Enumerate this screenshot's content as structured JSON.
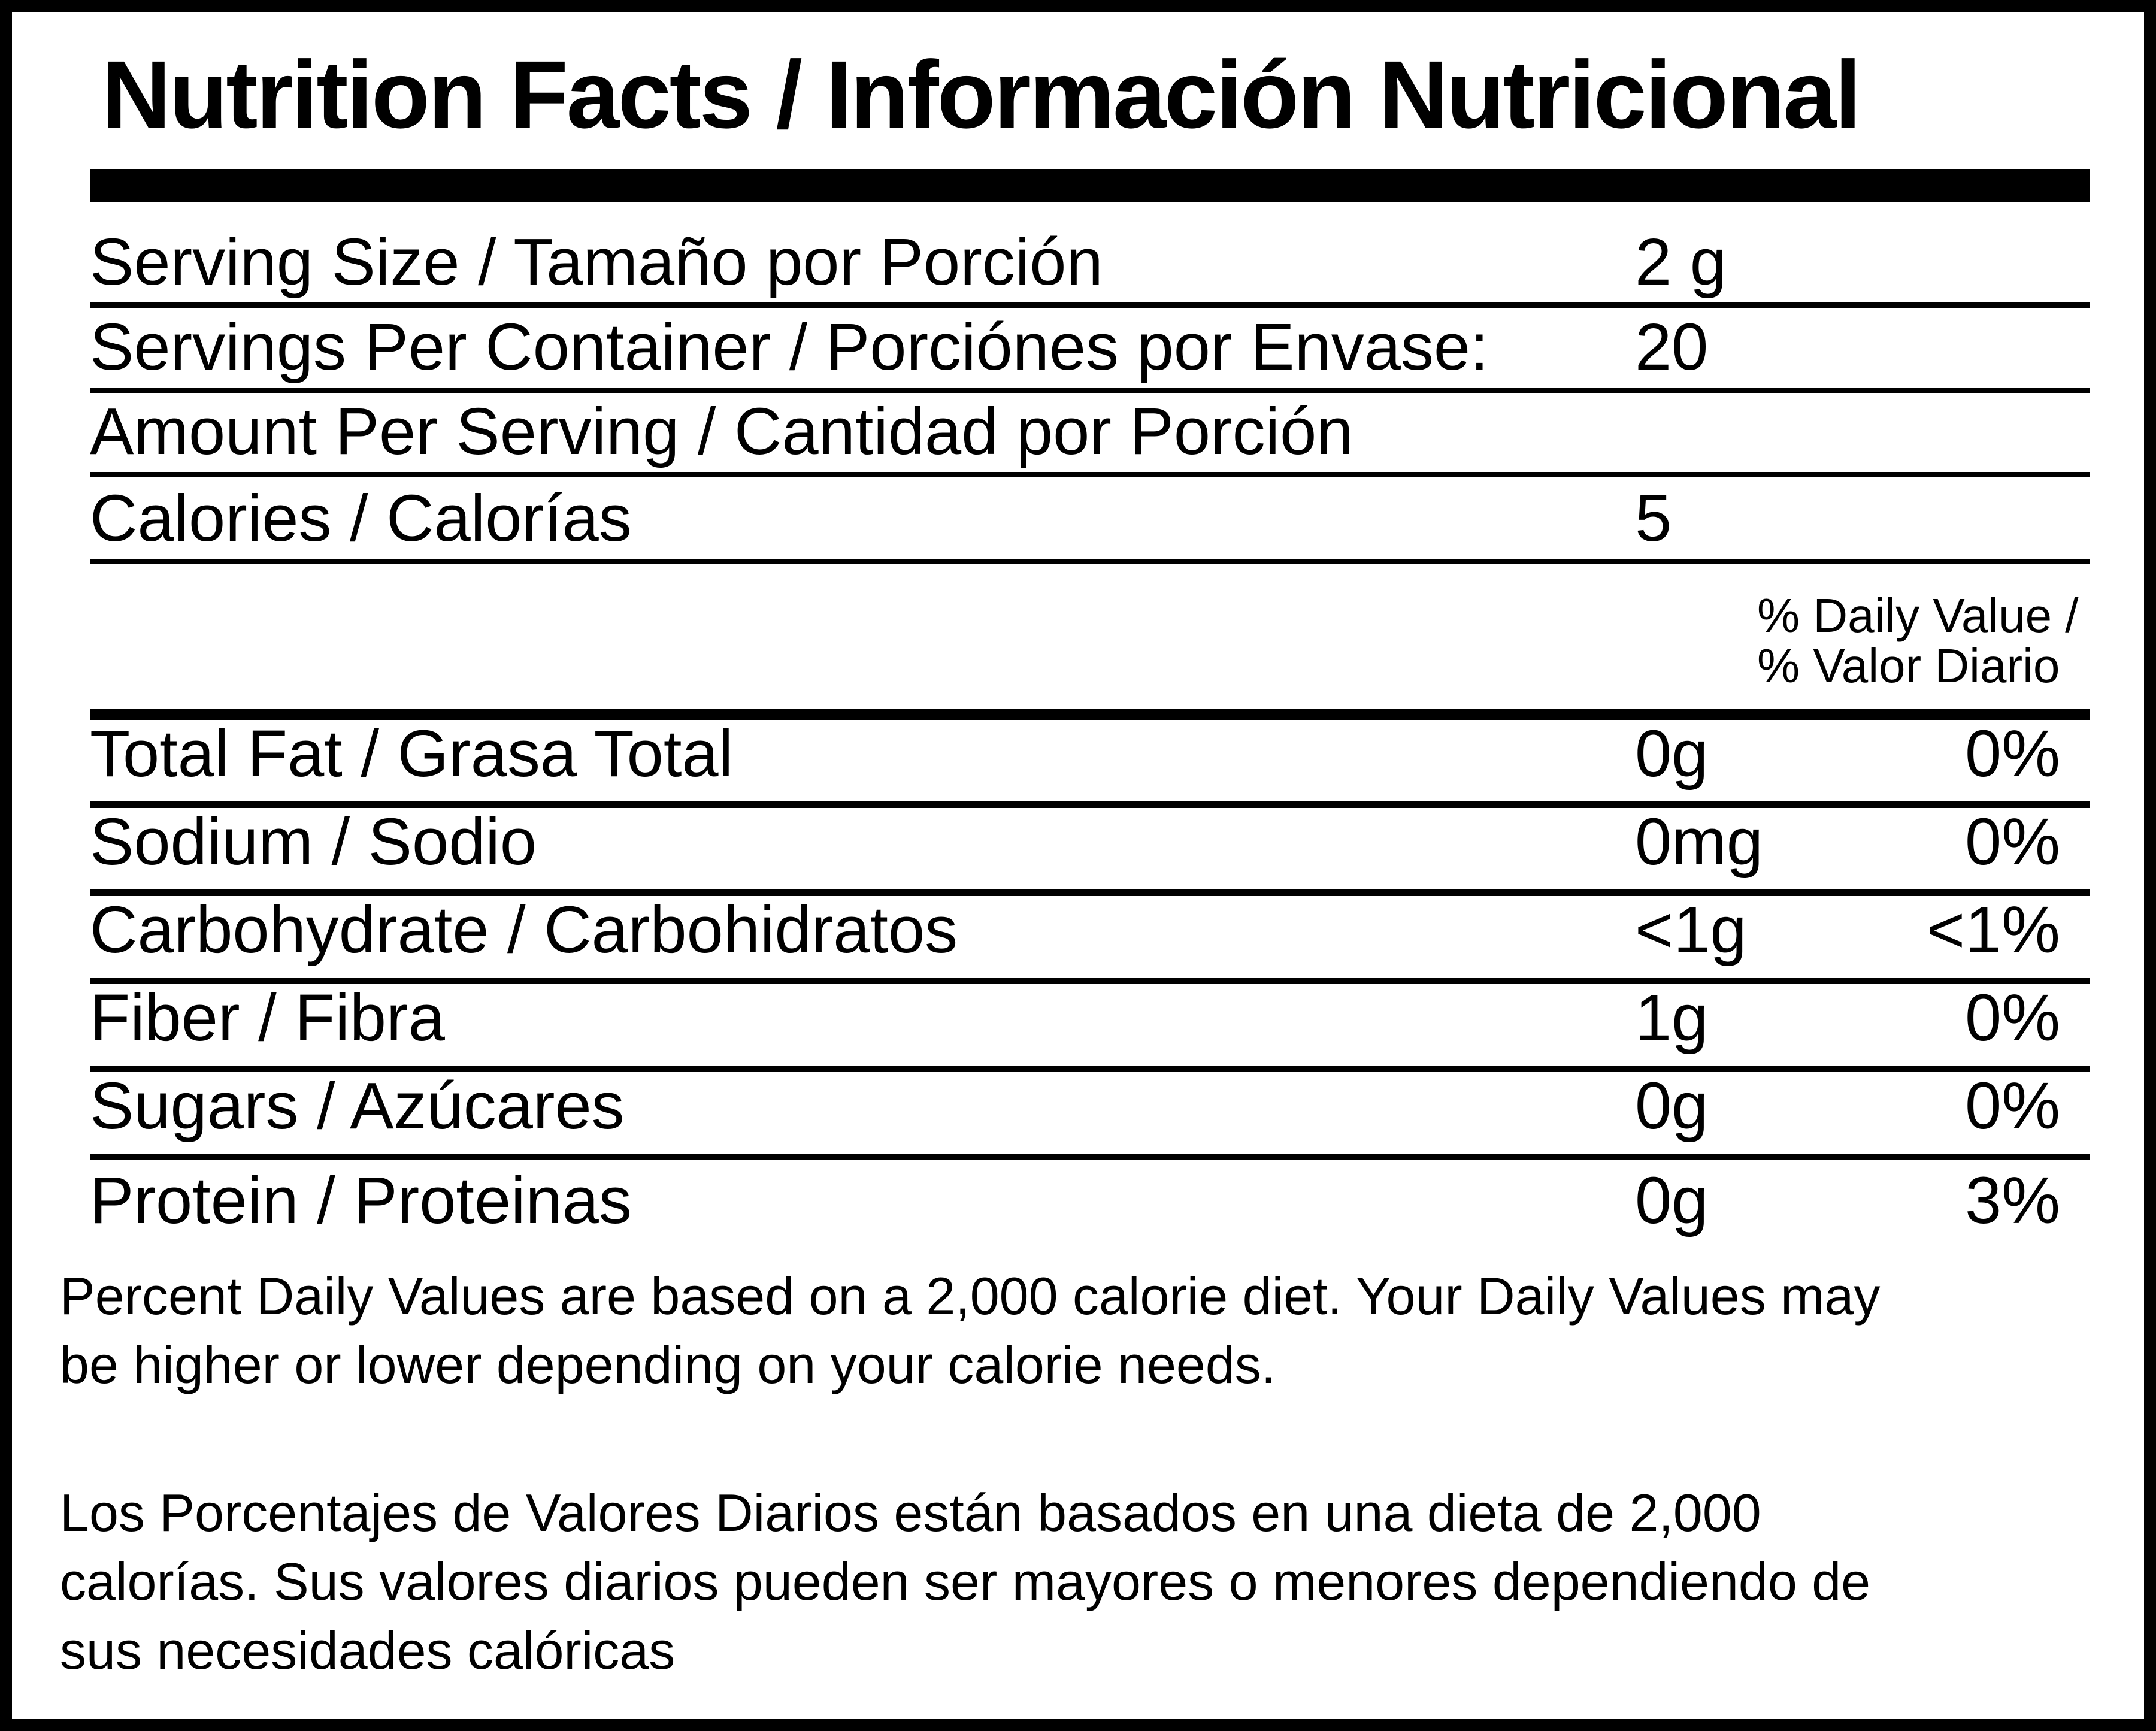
{
  "label": {
    "title": "Nutrition Facts / Información Nutricional",
    "meta_rows": [
      {
        "label": "Serving Size / Tamaño por Porción",
        "value": "2 g"
      },
      {
        "label": "Servings Per Container / Porciónes por Envase:",
        "value": "20"
      },
      {
        "label": "Amount Per Serving / Cantidad por Porción",
        "value": ""
      },
      {
        "label": "Calories / Calorías",
        "value": "5"
      }
    ],
    "daily_value_header": "% Daily Value /\n% Valor Diario",
    "nutrient_rows": [
      {
        "label": "Total Fat / Grasa Total",
        "amount": "0g",
        "daily_value": "0%"
      },
      {
        "label": "Sodium / Sodio",
        "amount": "0mg",
        "daily_value": "0%"
      },
      {
        "label": "Carbohydrate / Carbohidratos",
        "amount": "<1g",
        "daily_value": "<1%"
      },
      {
        "label": "Fiber / Fibra",
        "amount": "1g",
        "daily_value": "0%"
      },
      {
        "label": "Sugars / Azúcares",
        "amount": "0g",
        "daily_value": "0%"
      },
      {
        "label": "Protein / Proteinas",
        "amount": "0g",
        "daily_value": "3%"
      }
    ],
    "footnote_en": "Percent Daily Values are based on a 2,000 calorie diet. Your Daily Values may\nbe higher or lower depending on your calorie needs.",
    "footnote_es": "Los Porcentajes de Valores Diarios están basados en una dieta de 2,000\ncalorías. Sus valores diarios pueden ser mayores o menores dependiendo de\nsus necesidades calóricas",
    "colors": {
      "ink": "#000000",
      "paper": "#ffffff"
    }
  }
}
